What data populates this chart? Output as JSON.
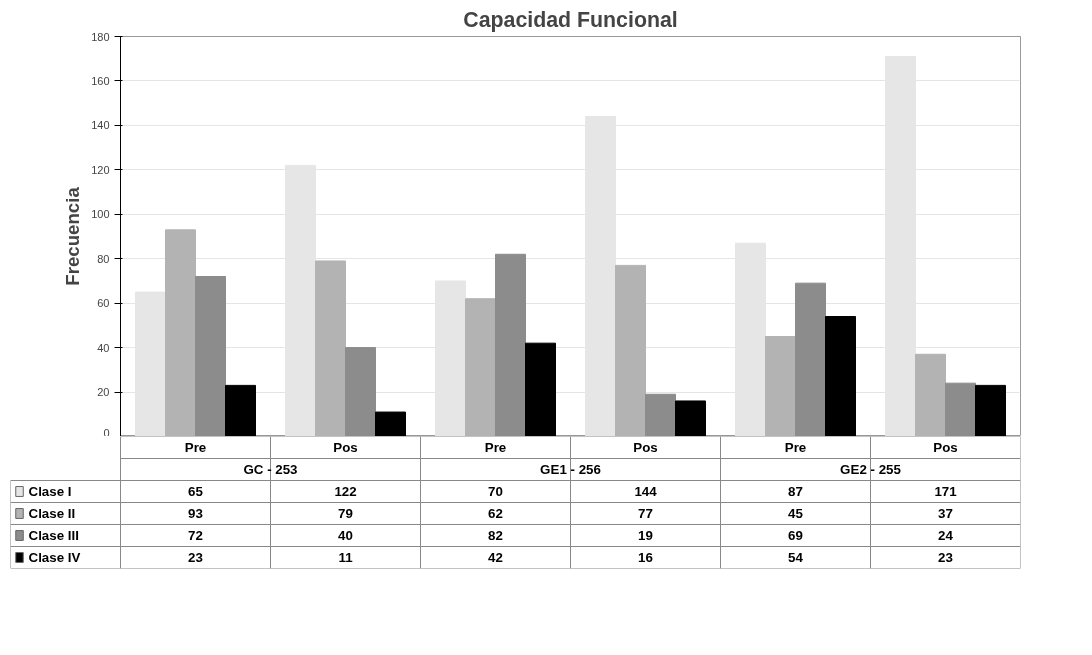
{
  "chart_data": {
    "type": "bar",
    "title": "Capacidad Funcional",
    "ylabel": "Frecuencia",
    "categories": [
      "Pre",
      "Pos",
      "Pre",
      "Pos",
      "Pre",
      "Pos"
    ],
    "annotations": [
      "GC - 253",
      "GE1 - 256",
      "GE2 - 255"
    ],
    "series": [
      {
        "name": "Clase I",
        "color": "#e6e6e6",
        "values": [
          65,
          122,
          70,
          144,
          87,
          171
        ]
      },
      {
        "name": "Clase II",
        "color": "#b3b3b3",
        "values": [
          93,
          79,
          62,
          77,
          45,
          37
        ]
      },
      {
        "name": "Clase III",
        "color": "#8c8c8c",
        "values": [
          72,
          40,
          82,
          19,
          69,
          24
        ]
      },
      {
        "name": "Clase IV",
        "color": "#000000",
        "values": [
          23,
          11,
          42,
          16,
          54,
          23
        ]
      }
    ],
    "ylim": [
      0,
      180
    ],
    "yticks": [
      0,
      20,
      40,
      60,
      80,
      100,
      120,
      140,
      160,
      180
    ],
    "grid": "y",
    "legend": "bottom left",
    "data_labels": true
  }
}
